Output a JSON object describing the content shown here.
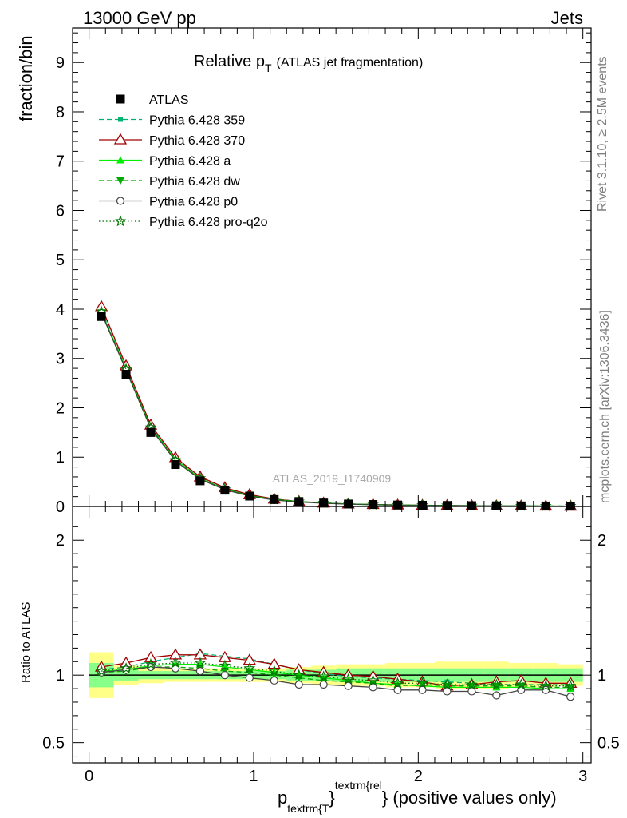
{
  "header": {
    "energy_label": "13000 GeV pp",
    "process_label": "Jets"
  },
  "side_notes": {
    "rivet_label": "Rivet 3.1.10, ≥ 2.5M events",
    "source_label": "mcplots.cern.ch [arXiv:1306.3436]"
  },
  "colors": {
    "atlas": "#000000",
    "p359": "#00b371",
    "p370": "#a00000",
    "pa": "#00ee00",
    "pdw": "#00aa00",
    "pp0": "#444444",
    "pq2o": "#007700",
    "band_outer": "#ffff88",
    "band_inner": "#88ff88"
  },
  "chart_data": [
    {
      "type": "line",
      "title_main": "Relative p",
      "title_sub": "T",
      "title_rest": "(ATLAS jet fragmentation)",
      "ylabel": "fraction/bin",
      "watermark": "ATLAS_2019_I1740909",
      "xlim": [
        -0.1,
        3.05
      ],
      "ylim": [
        0,
        9.7
      ],
      "yticks": [
        0,
        1,
        2,
        3,
        4,
        5,
        6,
        7,
        8,
        9
      ],
      "x": [
        0.075,
        0.225,
        0.375,
        0.525,
        0.675,
        0.825,
        0.975,
        1.125,
        1.275,
        1.425,
        1.575,
        1.725,
        1.875,
        2.025,
        2.175,
        2.325,
        2.475,
        2.625,
        2.775,
        2.925
      ],
      "series": [
        {
          "key": "atlas",
          "name": "ATLAS",
          "style": "square",
          "values": [
            3.85,
            2.68,
            1.5,
            0.85,
            0.52,
            0.33,
            0.21,
            0.14,
            0.1,
            0.07,
            0.05,
            0.04,
            0.03,
            0.025,
            0.02,
            0.016,
            0.013,
            0.011,
            0.009,
            0.008
          ]
        },
        {
          "key": "p359",
          "name": "Pythia 6.428 359",
          "style": "dashed-square",
          "values": [
            3.98,
            2.8,
            1.62,
            0.98,
            0.6,
            0.37,
            0.24,
            0.15,
            0.1,
            0.07,
            0.05,
            0.04,
            0.03,
            0.024,
            0.019,
            0.015,
            0.012,
            0.01,
            0.008,
            0.007
          ]
        },
        {
          "key": "p370",
          "name": "Pythia 6.428 370",
          "style": "open-triangle",
          "values": [
            4.05,
            2.85,
            1.65,
            0.99,
            0.6,
            0.38,
            0.24,
            0.15,
            0.1,
            0.07,
            0.05,
            0.04,
            0.03,
            0.024,
            0.019,
            0.015,
            0.012,
            0.01,
            0.008,
            0.007
          ]
        },
        {
          "key": "pa",
          "name": "Pythia 6.428 a",
          "style": "triangle",
          "values": [
            3.95,
            2.78,
            1.6,
            0.95,
            0.57,
            0.35,
            0.22,
            0.14,
            0.1,
            0.07,
            0.05,
            0.037,
            0.028,
            0.023,
            0.018,
            0.014,
            0.012,
            0.01,
            0.008,
            0.007
          ]
        },
        {
          "key": "pdw",
          "name": "Pythia 6.428 dw",
          "style": "dashed-down-triangle",
          "values": [
            3.93,
            2.76,
            1.58,
            0.93,
            0.56,
            0.35,
            0.22,
            0.14,
            0.1,
            0.07,
            0.05,
            0.037,
            0.028,
            0.023,
            0.018,
            0.014,
            0.012,
            0.01,
            0.008,
            0.007
          ]
        },
        {
          "key": "pp0",
          "name": "Pythia 6.428 p0",
          "style": "open-circle",
          "values": [
            3.92,
            2.76,
            1.58,
            0.92,
            0.55,
            0.34,
            0.21,
            0.13,
            0.09,
            0.065,
            0.047,
            0.035,
            0.026,
            0.021,
            0.017,
            0.013,
            0.011,
            0.009,
            0.007,
            0.006
          ]
        },
        {
          "key": "pq2o",
          "name": "Pythia 6.428 pro-q2o",
          "style": "dotted-star",
          "values": [
            3.95,
            2.78,
            1.6,
            0.94,
            0.57,
            0.35,
            0.22,
            0.14,
            0.1,
            0.07,
            0.05,
            0.037,
            0.028,
            0.023,
            0.018,
            0.014,
            0.012,
            0.01,
            0.008,
            0.007
          ]
        }
      ]
    },
    {
      "type": "line",
      "ylabel": "Ratio to ATLAS",
      "xlabel_main": "p",
      "xlabel_sub": "textrm{T",
      "xlabel_brace": "}",
      "xlabel_sup": "textrm{rel",
      "xlabel_rest": "} (positive values only)",
      "xlim": [
        -0.1,
        3.05
      ],
      "ylim": [
        0.35,
        2.25
      ],
      "yticks": [
        0.5,
        1,
        2
      ],
      "xticks": [
        0,
        1,
        2,
        3
      ],
      "band_edges": [
        0,
        0.15,
        0.3,
        0.45,
        0.6,
        0.75,
        0.9,
        1.05,
        1.2,
        1.35,
        1.5,
        1.65,
        1.8,
        1.95,
        2.1,
        2.25,
        2.4,
        2.55,
        2.7,
        2.85,
        3.0
      ],
      "band_outer": [
        0.17,
        0.07,
        0.06,
        0.05,
        0.05,
        0.05,
        0.05,
        0.05,
        0.06,
        0.07,
        0.08,
        0.08,
        0.09,
        0.09,
        0.1,
        0.1,
        0.1,
        0.09,
        0.09,
        0.08
      ],
      "band_inner": [
        0.09,
        0.04,
        0.03,
        0.03,
        0.03,
        0.03,
        0.03,
        0.03,
        0.04,
        0.04,
        0.05,
        0.05,
        0.05,
        0.05,
        0.05,
        0.05,
        0.05,
        0.05,
        0.05,
        0.05
      ],
      "series": [
        {
          "key": "p359",
          "values": [
            1.04,
            1.06,
            1.1,
            1.13,
            1.16,
            1.14,
            1.12,
            1.08,
            1.04,
            1.01,
            0.99,
            0.98,
            0.97,
            0.96,
            0.95,
            0.94,
            0.93,
            0.93,
            0.93,
            0.93
          ]
        },
        {
          "key": "p370",
          "values": [
            1.06,
            1.09,
            1.13,
            1.15,
            1.15,
            1.13,
            1.11,
            1.08,
            1.04,
            1.02,
            1.0,
            0.99,
            0.97,
            0.95,
            0.92,
            0.93,
            0.95,
            0.96,
            0.94,
            0.94
          ]
        },
        {
          "key": "pa",
          "values": [
            1.03,
            1.04,
            1.07,
            1.08,
            1.08,
            1.06,
            1.04,
            1.02,
            1.0,
            0.98,
            0.96,
            0.94,
            0.93,
            0.92,
            0.91,
            0.91,
            0.91,
            0.91,
            0.9,
            0.9
          ]
        },
        {
          "key": "pdw",
          "values": [
            1.02,
            1.03,
            1.06,
            1.06,
            1.05,
            1.03,
            1.02,
            1.0,
            0.98,
            0.96,
            0.95,
            0.94,
            0.92,
            0.93,
            0.92,
            0.92,
            0.92,
            0.92,
            0.91,
            0.91
          ]
        },
        {
          "key": "pp0",
          "values": [
            1.02,
            1.04,
            1.06,
            1.05,
            1.03,
            1.0,
            0.98,
            0.96,
            0.93,
            0.93,
            0.92,
            0.91,
            0.89,
            0.89,
            0.88,
            0.88,
            0.85,
            0.89,
            0.89,
            0.84
          ]
        },
        {
          "key": "pq2o",
          "values": [
            1.03,
            1.05,
            1.08,
            1.09,
            1.09,
            1.07,
            1.05,
            1.03,
            1.0,
            0.99,
            0.97,
            0.96,
            0.94,
            0.94,
            0.93,
            0.93,
            0.93,
            0.93,
            0.92,
            0.92
          ]
        }
      ]
    }
  ]
}
